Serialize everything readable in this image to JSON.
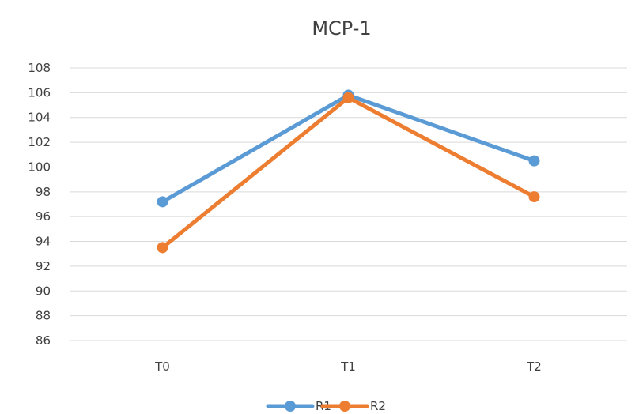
{
  "chart_data": {
    "type": "line",
    "title": "MCP-1",
    "xlabel": "",
    "ylabel": "",
    "categories": [
      "T0",
      "T1",
      "T2"
    ],
    "ylim": [
      86,
      108
    ],
    "yticks": [
      86,
      88,
      90,
      92,
      94,
      96,
      98,
      100,
      102,
      104,
      106,
      108
    ],
    "grid": "horizontal",
    "legend_position": "bottom",
    "series": [
      {
        "name": "R1",
        "values": [
          97.2,
          105.8,
          100.5
        ],
        "color": "#5b9bd5"
      },
      {
        "name": "R2",
        "values": [
          93.5,
          105.6,
          97.6
        ],
        "color": "#ed7d31"
      }
    ]
  }
}
